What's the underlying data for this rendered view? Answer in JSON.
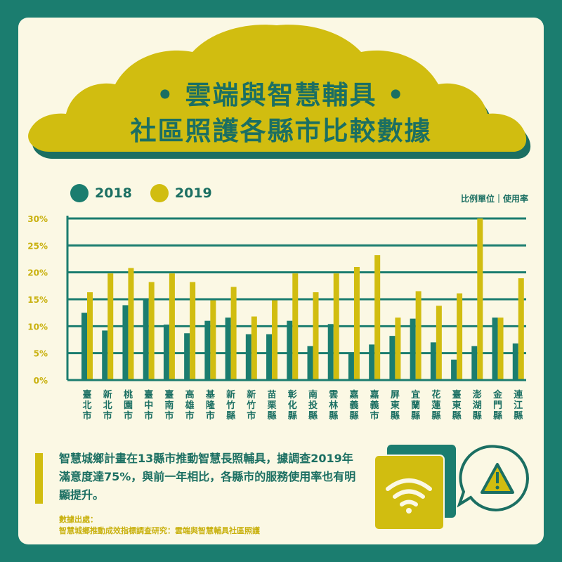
{
  "title": {
    "line1": "• 雲端與智慧輔具 •",
    "line2": "社區照護各縣市比較數據"
  },
  "legend": [
    {
      "label": "2018",
      "color": "#1b7d6f"
    },
    {
      "label": "2019",
      "color": "#d1bd10"
    }
  ],
  "unit": "比例單位｜使用率",
  "chart_data": {
    "type": "bar",
    "categories": [
      "臺北市",
      "新北市",
      "桃園市",
      "臺中市",
      "臺南市",
      "高雄市",
      "基隆市",
      "新竹縣",
      "新竹市",
      "苗栗縣",
      "彰化縣",
      "南投縣",
      "雲林縣",
      "嘉義縣",
      "嘉義市",
      "屏東縣",
      "宜蘭縣",
      "花蓮縣",
      "臺東縣",
      "澎湖縣",
      "金門縣",
      "連江縣"
    ],
    "series": [
      {
        "name": "2018",
        "values": [
          12.5,
          9.2,
          13.9,
          15.0,
          10.3,
          8.7,
          11.0,
          11.6,
          8.5,
          8.5,
          11.0,
          6.3,
          10.4,
          5.0,
          6.6,
          8.2,
          11.4,
          7.0,
          3.8,
          6.3,
          11.6,
          6.8
        ]
      },
      {
        "name": "2019",
        "values": [
          16.3,
          19.8,
          20.8,
          18.2,
          19.8,
          18.2,
          14.8,
          17.3,
          11.8,
          14.8,
          19.8,
          16.3,
          19.8,
          21.0,
          23.2,
          11.6,
          16.5,
          13.8,
          16.1,
          30.0,
          11.6,
          18.9
        ]
      }
    ],
    "yticks": [
      "30%",
      "25%",
      "20%",
      "15%",
      "10%",
      "5%",
      "0%"
    ],
    "ytick_values": [
      30,
      25,
      20,
      15,
      10,
      5,
      0
    ],
    "ylim": [
      0,
      30
    ],
    "grid": true
  },
  "note": {
    "text": "智慧城鄉計畫在13縣市推動智慧長照輔具，據調查2019年滿意度達75%，與前一年相比，各縣市的服務使用率也有明顯提升。",
    "source_label": "數據出處：",
    "source": "智慧城鄉推動成效指標調查研究：雲端與智慧輔具社區照護"
  },
  "icons": [
    "wifi-icon",
    "warning-icon"
  ],
  "colors": {
    "teal": "#1b7d6f",
    "yellow": "#d1bd10",
    "cream": "#fbf8e4"
  }
}
